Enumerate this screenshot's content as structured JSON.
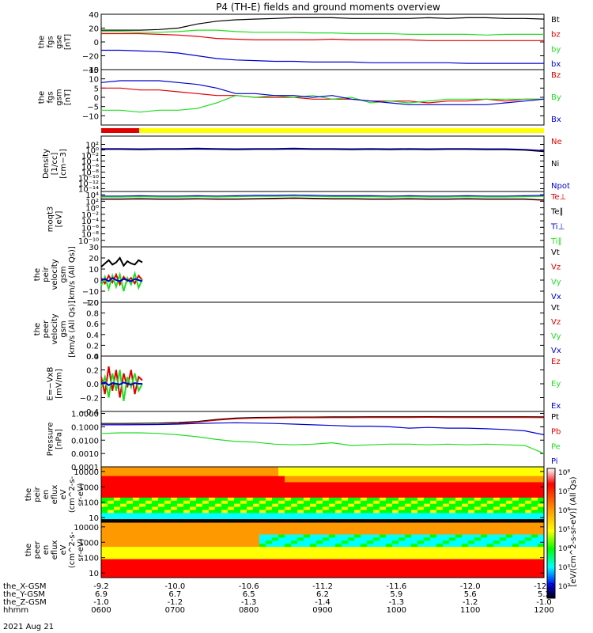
{
  "title": "P4 (TH-E) fields and ground moments overview",
  "date_label": "2021 Aug 21",
  "colors": {
    "black": "#000000",
    "red": "#e00000",
    "green": "#22dd22",
    "blue": "#0000cc",
    "yellow": "#ffff00"
  },
  "chart_data": [
    {
      "type": "line",
      "panel": "fgs_gse",
      "ylabel": [
        "the",
        "fgs",
        "gse",
        "[nT]"
      ],
      "ylim": [
        -40,
        40
      ],
      "ticks": [
        "40",
        "20",
        "0",
        "−20",
        "−40"
      ],
      "tick_values": [
        40,
        20,
        0,
        -20,
        -40
      ],
      "series": [
        {
          "name": "Bt",
          "color": "#000000",
          "values": [
            17,
            17,
            17,
            18,
            20,
            26,
            30,
            32,
            33,
            34,
            35,
            35,
            35,
            34,
            34,
            34,
            34,
            35,
            34,
            35,
            35,
            34,
            34,
            33
          ]
        },
        {
          "name": "bz",
          "color": "#e00000",
          "values": [
            12,
            12,
            12,
            11,
            10,
            8,
            5,
            4,
            3,
            3,
            3,
            3,
            4,
            3,
            3,
            3,
            3,
            2,
            2,
            2,
            2,
            2,
            2,
            2
          ]
        },
        {
          "name": "by",
          "color": "#22dd22",
          "values": [
            15,
            15,
            14,
            14,
            15,
            17,
            17,
            15,
            14,
            14,
            14,
            13,
            13,
            12,
            12,
            12,
            11,
            11,
            11,
            11,
            10,
            11,
            11,
            11
          ]
        },
        {
          "name": "bx",
          "color": "#0000cc",
          "values": [
            -12,
            -12,
            -13,
            -14,
            -16,
            -20,
            -24,
            -26,
            -27,
            -28,
            -28,
            -29,
            -29,
            -29,
            -30,
            -30,
            -30,
            -30,
            -30,
            -31,
            -31,
            -31,
            -31,
            -31
          ]
        }
      ]
    },
    {
      "type": "line",
      "panel": "fgs_gsm",
      "ylabel": [
        "the",
        "fgs",
        "gsm",
        "[nT]"
      ],
      "ylim": [
        -15,
        15
      ],
      "ticks": [
        "15",
        "10",
        "5",
        "0",
        "−5",
        "−10"
      ],
      "tick_values": [
        15,
        10,
        5,
        0,
        -5,
        -10
      ],
      "series": [
        {
          "name": "Bz",
          "color": "#e00000",
          "values": [
            5,
            5,
            4,
            4,
            3,
            2,
            1,
            1,
            0,
            0,
            0,
            -1,
            -1,
            -1,
            -2,
            -2,
            -2,
            -3,
            -2,
            -2,
            -1,
            -2,
            -1,
            -1
          ]
        },
        {
          "name": "By",
          "color": "#22dd22",
          "values": [
            -7,
            -7,
            -8,
            -7,
            -7,
            -6,
            -3,
            1,
            0,
            1,
            0,
            1,
            -1,
            0,
            -3,
            -2,
            -3,
            -2,
            -1,
            -1,
            -1,
            -1,
            -1,
            -1
          ]
        },
        {
          "name": "Bx",
          "color": "#0000cc",
          "values": [
            8,
            9,
            9,
            9,
            8,
            7,
            5,
            2,
            2,
            1,
            1,
            0,
            1,
            -1,
            -2,
            -3,
            -4,
            -4,
            -4,
            -4,
            -4,
            -3,
            -2,
            -1
          ]
        }
      ]
    },
    {
      "type": "line",
      "panel": "density",
      "ylabel": [
        "Density",
        "[1/cc]",
        "[cm−3]"
      ],
      "ylim": [
        -15,
        5
      ],
      "log": true,
      "ticks": [
        "10²",
        "10⁰",
        "10⁻²",
        "10⁻⁴",
        "10⁻⁶",
        "10⁻⁸",
        "10⁻¹⁰",
        "10⁻¹²",
        "10⁻¹⁴"
      ],
      "tick_values": [
        2,
        0,
        -2,
        -4,
        -6,
        -8,
        -10,
        -12,
        -14
      ],
      "series": [
        {
          "name": "Ne",
          "color": "#e00000",
          "values": [
            0.3,
            0.3,
            0.2,
            0.3,
            0.3,
            0.4,
            0.3,
            0.2,
            0.3,
            0.3,
            0.4,
            0.3,
            0.3,
            0.2,
            0.3,
            0.2,
            0.3,
            0.2,
            0.3,
            0.3,
            0.2,
            0.2,
            0,
            -0.5
          ]
        },
        {
          "name": "Ni",
          "color": "#000000",
          "values": [
            0.2,
            0.2,
            0.1,
            0.2,
            0.2,
            0.3,
            0.2,
            0.1,
            0.2,
            0.2,
            0.3,
            0.2,
            0.2,
            0.1,
            0.2,
            0.1,
            0.2,
            0.1,
            0.2,
            0.2,
            0.1,
            0.1,
            -0.1,
            -0.6
          ]
        },
        {
          "name": "Npot",
          "color": "#0000cc",
          "values": [
            0.5,
            0.5,
            0.4,
            0.5,
            0.5,
            0.6,
            0.5,
            0.4,
            0.5,
            0.5,
            0.6,
            0.5,
            0.5,
            0.4,
            0.5,
            0.4,
            0.5,
            0.4,
            0.5,
            0.5,
            0.4,
            0.4,
            0.2,
            -0.2
          ]
        }
      ]
    },
    {
      "type": "line",
      "panel": "temperature",
      "ylabel": [
        "moqt3",
        "[eV]"
      ],
      "ylim": [
        -12,
        5
      ],
      "log": true,
      "ticks": [
        "10⁴",
        "10²",
        "10⁰",
        "10⁻²",
        "10⁻⁴",
        "10⁻⁶",
        "10⁻⁸",
        "10⁻¹⁰"
      ],
      "tick_values": [
        4,
        2,
        0,
        -2,
        -4,
        -6,
        -8,
        -10
      ],
      "series": [
        {
          "name": "Te⊥",
          "color": "#e00000",
          "values": [
            2.6,
            2.6,
            2.7,
            2.6,
            2.6,
            2.7,
            2.6,
            2.6,
            2.7,
            2.8,
            2.9,
            2.8,
            2.7,
            2.7,
            2.6,
            2.6,
            2.7,
            2.6,
            2.6,
            2.7,
            2.6,
            2.6,
            2.6,
            2.3
          ]
        },
        {
          "name": "Te∥",
          "color": "#000000",
          "values": [
            2.7,
            2.7,
            2.8,
            2.7,
            2.7,
            2.8,
            2.7,
            2.7,
            2.8,
            2.9,
            3.0,
            2.9,
            2.8,
            2.8,
            2.7,
            2.7,
            2.8,
            2.7,
            2.7,
            2.8,
            2.7,
            2.7,
            2.7,
            2.4
          ]
        },
        {
          "name": "Ti⊥",
          "color": "#0000cc",
          "values": [
            3.6,
            3.6,
            3.7,
            3.6,
            3.6,
            3.7,
            3.6,
            3.7,
            3.8,
            3.8,
            3.9,
            3.8,
            3.7,
            3.7,
            3.7,
            3.6,
            3.7,
            3.6,
            3.6,
            3.7,
            3.6,
            3.6,
            3.7,
            3.8
          ]
        },
        {
          "name": "Ti∥",
          "color": "#22dd22",
          "values": [
            3.3,
            3.3,
            3.4,
            3.3,
            3.3,
            3.4,
            3.3,
            3.4,
            3.5,
            3.5,
            3.6,
            3.5,
            3.4,
            3.4,
            3.4,
            3.3,
            3.4,
            3.3,
            3.3,
            3.4,
            3.3,
            3.3,
            3.4,
            3.5
          ]
        }
      ]
    },
    {
      "type": "line",
      "panel": "peir_velocity",
      "ylabel": [
        "the",
        "peir",
        "velocity",
        "gsm",
        "[km/s (All Qs)]"
      ],
      "ylim": [
        -20,
        30
      ],
      "ticks": [
        "30",
        "20",
        "10",
        "0",
        "−10",
        "−20"
      ],
      "tick_values": [
        30,
        20,
        10,
        0,
        -10,
        -20
      ],
      "series": [
        {
          "name": "Vt",
          "color": "#000000",
          "values": [
            12,
            15,
            18,
            14,
            16,
            20,
            13,
            17,
            15,
            14,
            18,
            16
          ]
        },
        {
          "name": "Vz",
          "color": "#e00000",
          "values": [
            2,
            -3,
            4,
            -2,
            5,
            -4,
            3,
            -1,
            2,
            -3,
            4,
            0
          ]
        },
        {
          "name": "Vy",
          "color": "#22dd22",
          "values": [
            -5,
            3,
            -8,
            4,
            -6,
            5,
            -10,
            2,
            -4,
            6,
            -7,
            1
          ]
        },
        {
          "name": "Vx",
          "color": "#0000cc",
          "values": [
            0,
            1,
            -1,
            2,
            0,
            -1,
            1,
            0,
            -1,
            1,
            0,
            -1
          ]
        }
      ]
    },
    {
      "type": "line",
      "panel": "peer_velocity",
      "ylabel": [
        "the",
        "peer",
        "velocity",
        "gsm",
        "[km/s (All Qs)]"
      ],
      "ylim": [
        0,
        1
      ],
      "ticks": [
        "1.0",
        "0.8",
        "0.6",
        "0.4",
        "0.2",
        "0.0"
      ],
      "tick_values": [
        1,
        0.8,
        0.6,
        0.4,
        0.2,
        0
      ],
      "series": [
        {
          "name": "Vt",
          "color": "#000000",
          "values": []
        },
        {
          "name": "Vz",
          "color": "#e00000",
          "values": []
        },
        {
          "name": "Vy",
          "color": "#22dd22",
          "values": []
        },
        {
          "name": "Vx",
          "color": "#0000cc",
          "values": []
        }
      ]
    },
    {
      "type": "line",
      "panel": "e_field",
      "ylabel": [
        "E=−VxB",
        "[mV/m]"
      ],
      "ylim": [
        -0.4,
        0.4
      ],
      "ticks": [
        "0.4",
        "0.2",
        "0.0",
        "−0.2",
        "−0.4"
      ],
      "tick_values": [
        0.4,
        0.2,
        0,
        -0.2,
        -0.4
      ],
      "series": [
        {
          "name": "Ez",
          "color": "#e00000",
          "values": [
            0.1,
            -0.15,
            0.25,
            -0.1,
            0.2,
            -0.2,
            0.15,
            -0.05,
            0.2,
            -0.15,
            0.1,
            0.05
          ]
        },
        {
          "name": "Ey",
          "color": "#22dd22",
          "values": [
            -0.05,
            0.1,
            -0.2,
            0.15,
            -0.1,
            0.2,
            -0.25,
            0.1,
            -0.05,
            0.15,
            -0.1,
            0
          ]
        },
        {
          "name": "Ex",
          "color": "#0000cc",
          "values": [
            0,
            0.02,
            -0.02,
            0.01,
            0,
            -0.01,
            0.02,
            0,
            -0.01,
            0.01,
            0,
            0
          ]
        }
      ]
    },
    {
      "type": "line",
      "panel": "pressure",
      "ylabel": [
        "Pressure",
        "[nPa]"
      ],
      "ylim": [
        -4,
        0.15
      ],
      "log": true,
      "ticks": [
        "1.0000",
        "0.1000",
        "0.0100",
        "0.0010",
        "0.0001"
      ],
      "tick_values": [
        0,
        -1,
        -2,
        -3,
        -4
      ],
      "series": [
        {
          "name": "Pt",
          "color": "#000000",
          "values": [
            -0.75,
            -0.75,
            -0.74,
            -0.72,
            -0.68,
            -0.6,
            -0.45,
            -0.35,
            -0.3,
            -0.28,
            -0.27,
            -0.27,
            -0.26,
            -0.26,
            -0.25,
            -0.25,
            -0.25,
            -0.24,
            -0.25,
            -0.25,
            -0.25,
            -0.25,
            -0.25,
            -0.26
          ]
        },
        {
          "name": "Pb",
          "color": "#e00000",
          "values": [
            -0.85,
            -0.85,
            -0.84,
            -0.82,
            -0.76,
            -0.65,
            -0.5,
            -0.4,
            -0.35,
            -0.33,
            -0.32,
            -0.32,
            -0.31,
            -0.31,
            -0.3,
            -0.3,
            -0.3,
            -0.29,
            -0.3,
            -0.3,
            -0.3,
            -0.3,
            -0.3,
            -0.31
          ]
        },
        {
          "name": "Pe",
          "color": "#22dd22",
          "values": [
            -1.5,
            -1.45,
            -1.45,
            -1.5,
            -1.6,
            -1.75,
            -1.95,
            -2.1,
            -2.15,
            -2.3,
            -2.35,
            -2.3,
            -2.2,
            -2.4,
            -2.35,
            -2.3,
            -2.3,
            -2.35,
            -2.3,
            -2.35,
            -2.3,
            -2.35,
            -2.4,
            -3.0
          ]
        },
        {
          "name": "Pi",
          "color": "#0000cc",
          "values": [
            -0.85,
            -0.85,
            -0.84,
            -0.83,
            -0.8,
            -0.75,
            -0.72,
            -0.7,
            -0.72,
            -0.75,
            -0.8,
            -0.85,
            -0.9,
            -0.95,
            -0.95,
            -1.0,
            -1.1,
            -1.05,
            -1.1,
            -1.1,
            -1.15,
            -1.2,
            -1.3,
            -1.6
          ]
        }
      ]
    },
    {
      "type": "heatmap",
      "panel": "peir_eflux",
      "ylabel": [
        "the",
        "peir",
        "en",
        "eflux",
        "eV",
        "(cm^2-s-",
        "sr-eV)"
      ],
      "ticks": [
        "10000",
        "1000",
        "100",
        "10"
      ],
      "tick_values": [
        4,
        3,
        2,
        1
      ],
      "ylim": [
        0.7,
        4.3
      ]
    },
    {
      "type": "heatmap",
      "panel": "peer_eflux",
      "ylabel": [
        "the",
        "peer",
        "en",
        "eflux",
        "eV",
        "(cm^2-s-",
        "sr-eV)"
      ],
      "ticks": [
        "10000",
        "1000",
        "100",
        "10"
      ],
      "tick_values": [
        4,
        3,
        2,
        1
      ],
      "ylim": [
        0.7,
        4.3
      ]
    }
  ],
  "colorbar": {
    "ticks": [
      "10⁸",
      "10⁷",
      "10⁶",
      "10⁵",
      "10⁴",
      "10³",
      "10²"
    ],
    "label": "[eV/(cm^2-s-sr-eV)] (All Qs)"
  },
  "xaxis": {
    "rows": [
      {
        "label": "the_X-GSM",
        "values": [
          "-9.2",
          "-10.0",
          "-10.6",
          "-11.2",
          "-11.6",
          "-12.0",
          "-12.2"
        ]
      },
      {
        "label": "the_Y-GSM",
        "values": [
          "6.9",
          "6.7",
          "6.5",
          "6.2",
          "5.9",
          "5.6",
          "5.2"
        ]
      },
      {
        "label": "the_Z-GSM",
        "values": [
          "-1.0",
          "-1.2",
          "-1.3",
          "-1.4",
          "-1.3",
          "-1.2",
          "-1.0"
        ]
      },
      {
        "label": "hhmm",
        "values": [
          "0600",
          "0700",
          "0800",
          "0900",
          "1000",
          "1100",
          "1200"
        ]
      }
    ]
  }
}
